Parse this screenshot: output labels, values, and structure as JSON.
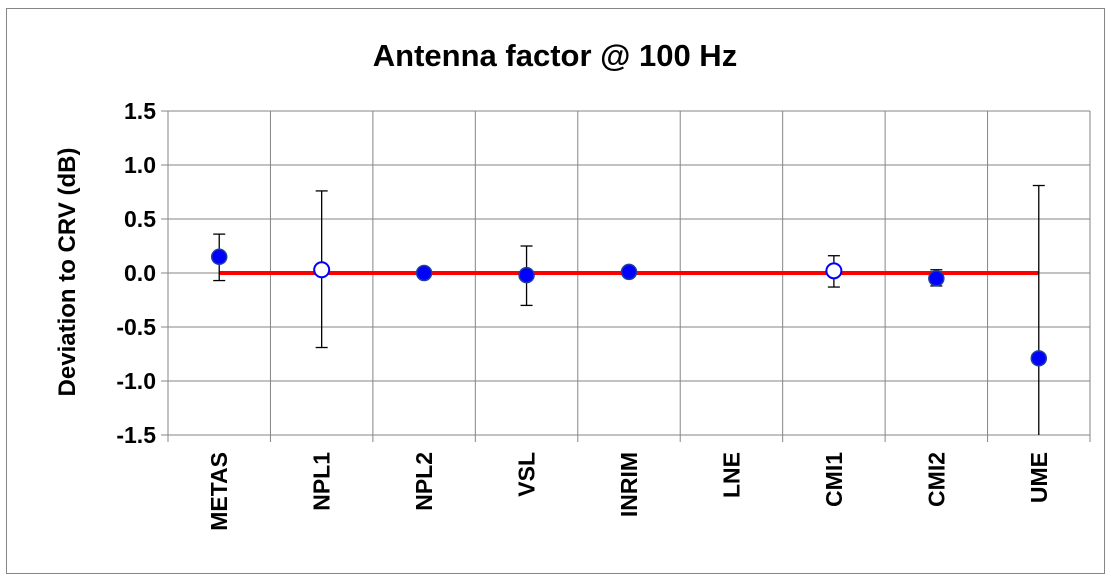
{
  "chart_data": {
    "type": "scatter",
    "title": "Antenna factor @ 100 Hz",
    "ylabel": "Deviation to CRV (dB)",
    "xlabel": "",
    "ylim": [
      -1.5,
      1.5
    ],
    "yticks": [
      1.5,
      1.0,
      0.5,
      0.0,
      -0.5,
      -1.0,
      -1.5
    ],
    "ytick_labels": [
      "1.5",
      "1.0",
      "0.5",
      "0.0",
      "-0.5",
      "-1.0",
      "-1.5"
    ],
    "grid": true,
    "legend": "none",
    "categories": [
      "METAS",
      "NPL1",
      "NPL2",
      "VSL",
      "INRIM",
      "LNE",
      "CMI1",
      "CMI2",
      "UME"
    ],
    "reference_line": {
      "value": 0.0,
      "from": "METAS",
      "to": "UME",
      "color": "#ff0000"
    },
    "points": [
      {
        "category": "METAS",
        "value": 0.15,
        "err_low": -0.07,
        "err_high": 0.36,
        "filled": true
      },
      {
        "category": "NPL1",
        "value": 0.03,
        "err_low": -0.69,
        "err_high": 0.76,
        "filled": false
      },
      {
        "category": "NPL2",
        "value": 0.0,
        "err_low": null,
        "err_high": null,
        "filled": true
      },
      {
        "category": "VSL",
        "value": -0.02,
        "err_low": -0.3,
        "err_high": 0.25,
        "filled": true
      },
      {
        "category": "INRIM",
        "value": 0.01,
        "err_low": null,
        "err_high": null,
        "filled": true
      },
      {
        "category": "CMI1",
        "value": 0.02,
        "err_low": -0.13,
        "err_high": 0.16,
        "filled": false
      },
      {
        "category": "CMI2",
        "value": -0.05,
        "err_low": -0.12,
        "err_high": 0.03,
        "filled": true
      },
      {
        "category": "UME",
        "value": -0.79,
        "err_low": -1.5,
        "err_high": 0.81,
        "filled": true
      }
    ],
    "colors": {
      "marker": "#0000ff",
      "marker_edge": "#1f3f9f",
      "error_bar": "#000000",
      "grid": "#868686"
    }
  }
}
